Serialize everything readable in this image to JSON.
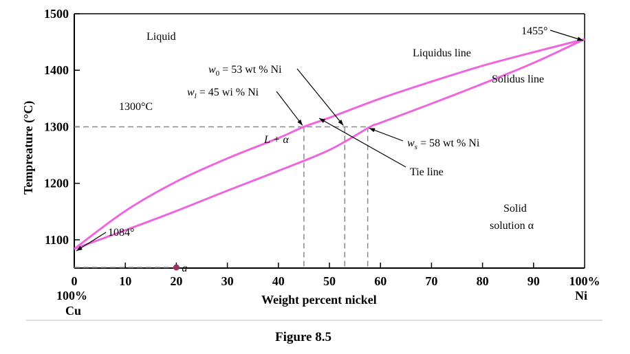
{
  "figure_caption": "Figure 8.5",
  "colors": {
    "curve": "#ee66dd",
    "axis": "#000000",
    "dash": "#888888",
    "point": "#993366"
  },
  "chart_data": {
    "type": "phase-diagram",
    "xlabel": "Weight percent nickel",
    "ylabel": "Tempreature (°C)",
    "xlim": [
      0,
      100
    ],
    "ylim": [
      1050,
      1500
    ],
    "x_ticks": [
      "0",
      "10",
      "20",
      "30",
      "40",
      "50",
      "60",
      "70",
      "80",
      "90",
      "100%"
    ],
    "y_ticks": [
      "1500",
      "1400",
      "1300",
      "1200",
      "1100"
    ],
    "x_end_labels": {
      "left_percent": "100%",
      "left_element": "Cu",
      "right_element": "Ni"
    },
    "series": [
      {
        "name": "Liquidus line",
        "x": [
          0,
          10,
          20,
          30,
          40,
          45,
          50,
          60,
          70,
          80,
          90,
          100
        ],
        "y": [
          1084,
          1151,
          1203,
          1244,
          1280,
          1300,
          1316,
          1350,
          1380,
          1408,
          1432,
          1455
        ]
      },
      {
        "name": "Solidus line",
        "x": [
          0,
          10,
          20,
          30,
          40,
          50,
          58,
          60,
          70,
          80,
          90,
          100
        ],
        "y": [
          1084,
          1117,
          1151,
          1187,
          1222,
          1259,
          1300,
          1307,
          1341,
          1376,
          1413,
          1455
        ]
      }
    ],
    "regions": {
      "liquid": "Liquid",
      "two_phase": "L + α",
      "solid_1": "Solid",
      "solid_2": "solution α"
    },
    "points": [
      {
        "label": "a",
        "x": 20,
        "y": 1050
      }
    ],
    "annotations": {
      "melt_ni": "1455°",
      "melt_cu": "1084°",
      "tie_temp": "1300°C",
      "liquidus_label": "Liquidus line",
      "solidus_label": "Solidus line",
      "tie_line_label": "Tie line",
      "w0": {
        "sym": "w",
        "sub": "0",
        "text": " = 53 wt % Ni",
        "x": 53
      },
      "wl": {
        "sym": "w",
        "sub": "l",
        "text": " = 45 wi % Ni",
        "x": 45
      },
      "ws": {
        "sym": "w",
        "sub": "s",
        "text": " = 58 wt % Ni",
        "x": 57.5
      }
    },
    "tie_line": {
      "y": 1300,
      "x_from": 0,
      "x_to": 57.5
    }
  }
}
